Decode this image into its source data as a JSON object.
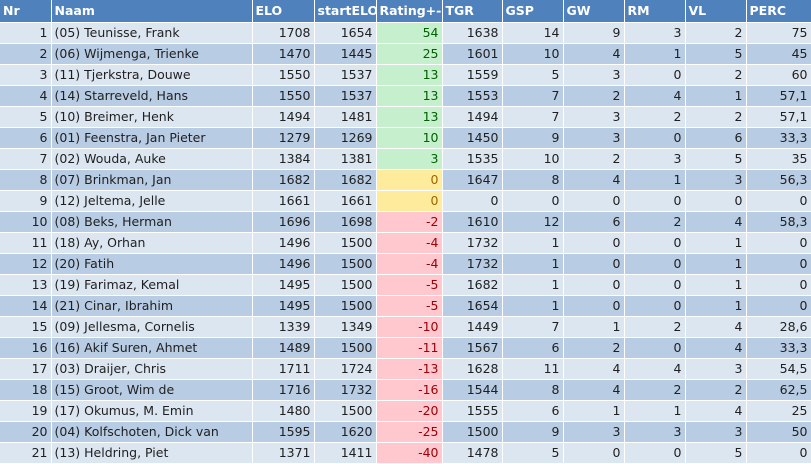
{
  "columns": [
    "Nr",
    "Naam",
    "ELO",
    "startELO",
    "Rating+-",
    "TGR",
    "GSP",
    "GW",
    "RM",
    "VL",
    "PERC"
  ],
  "rows": [
    {
      "nr": "1",
      "naam": "(05) Teunisse, Frank",
      "elo": "1708",
      "start": "1654",
      "rating": "54",
      "tgr": "1638",
      "gsp": "14",
      "gw": "9",
      "rm": "3",
      "vl": "2",
      "perc": "75"
    },
    {
      "nr": "2",
      "naam": "(06) Wijmenga, Trienke",
      "elo": "1470",
      "start": "1445",
      "rating": "25",
      "tgr": "1601",
      "gsp": "10",
      "gw": "4",
      "rm": "1",
      "vl": "5",
      "perc": "45"
    },
    {
      "nr": "3",
      "naam": "(11) Tjerkstra, Douwe",
      "elo": "1550",
      "start": "1537",
      "rating": "13",
      "tgr": "1559",
      "gsp": "5",
      "gw": "3",
      "rm": "0",
      "vl": "2",
      "perc": "60"
    },
    {
      "nr": "4",
      "naam": "(14) Starreveld, Hans",
      "elo": "1550",
      "start": "1537",
      "rating": "13",
      "tgr": "1553",
      "gsp": "7",
      "gw": "2",
      "rm": "4",
      "vl": "1",
      "perc": "57,1"
    },
    {
      "nr": "5",
      "naam": "(10) Breimer, Henk",
      "elo": "1494",
      "start": "1481",
      "rating": "13",
      "tgr": "1494",
      "gsp": "7",
      "gw": "3",
      "rm": "2",
      "vl": "2",
      "perc": "57,1"
    },
    {
      "nr": "6",
      "naam": "(01) Feenstra, Jan Pieter",
      "elo": "1279",
      "start": "1269",
      "rating": "10",
      "tgr": "1450",
      "gsp": "9",
      "gw": "3",
      "rm": "0",
      "vl": "6",
      "perc": "33,3"
    },
    {
      "nr": "7",
      "naam": "(02) Wouda, Auke",
      "elo": "1384",
      "start": "1381",
      "rating": "3",
      "tgr": "1535",
      "gsp": "10",
      "gw": "2",
      "rm": "3",
      "vl": "5",
      "perc": "35"
    },
    {
      "nr": "8",
      "naam": "(07) Brinkman, Jan",
      "elo": "1682",
      "start": "1682",
      "rating": "0",
      "tgr": "1647",
      "gsp": "8",
      "gw": "4",
      "rm": "1",
      "vl": "3",
      "perc": "56,3"
    },
    {
      "nr": "9",
      "naam": "(12) Jeltema, Jelle",
      "elo": "1661",
      "start": "1661",
      "rating": "0",
      "tgr": "0",
      "gsp": "0",
      "gw": "0",
      "rm": "0",
      "vl": "0",
      "perc": "0"
    },
    {
      "nr": "10",
      "naam": "(08) Beks, Herman",
      "elo": "1696",
      "start": "1698",
      "rating": "-2",
      "tgr": "1610",
      "gsp": "12",
      "gw": "6",
      "rm": "2",
      "vl": "4",
      "perc": "58,3"
    },
    {
      "nr": "11",
      "naam": "(18)  Ay, Orhan",
      "elo": "1496",
      "start": "1500",
      "rating": "-4",
      "tgr": "1732",
      "gsp": "1",
      "gw": "0",
      "rm": "0",
      "vl": "1",
      "perc": "0"
    },
    {
      "nr": "12",
      "naam": "(20) Fatih",
      "elo": "1496",
      "start": "1500",
      "rating": "-4",
      "tgr": "1732",
      "gsp": "1",
      "gw": "0",
      "rm": "0",
      "vl": "1",
      "perc": "0"
    },
    {
      "nr": "13",
      "naam": "(19) Farimaz, Kemal",
      "elo": "1495",
      "start": "1500",
      "rating": "-5",
      "tgr": "1682",
      "gsp": "1",
      "gw": "0",
      "rm": "0",
      "vl": "1",
      "perc": "0"
    },
    {
      "nr": "14",
      "naam": "(21) Cinar, Ibrahim",
      "elo": "1495",
      "start": "1500",
      "rating": "-5",
      "tgr": "1654",
      "gsp": "1",
      "gw": "0",
      "rm": "0",
      "vl": "1",
      "perc": "0"
    },
    {
      "nr": "15",
      "naam": "(09) Jellesma, Cornelis",
      "elo": "1339",
      "start": "1349",
      "rating": "-10",
      "tgr": "1449",
      "gsp": "7",
      "gw": "1",
      "rm": "2",
      "vl": "4",
      "perc": "28,6"
    },
    {
      "nr": "16",
      "naam": "(16) Akif Suren, Ahmet",
      "elo": "1489",
      "start": "1500",
      "rating": "-11",
      "tgr": "1567",
      "gsp": "6",
      "gw": "2",
      "rm": "0",
      "vl": "4",
      "perc": "33,3"
    },
    {
      "nr": "17",
      "naam": "(03) Draijer, Chris",
      "elo": "1711",
      "start": "1724",
      "rating": "-13",
      "tgr": "1628",
      "gsp": "11",
      "gw": "4",
      "rm": "4",
      "vl": "3",
      "perc": "54,5"
    },
    {
      "nr": "18",
      "naam": "(15) Groot, Wim de",
      "elo": "1716",
      "start": "1732",
      "rating": "-16",
      "tgr": "1544",
      "gsp": "8",
      "gw": "4",
      "rm": "2",
      "vl": "2",
      "perc": "62,5"
    },
    {
      "nr": "19",
      "naam": "(17) Okumus, M. Emin",
      "elo": "1480",
      "start": "1500",
      "rating": "-20",
      "tgr": "1555",
      "gsp": "6",
      "gw": "1",
      "rm": "1",
      "vl": "4",
      "perc": "25"
    },
    {
      "nr": "20",
      "naam": "(04) Kolfschoten, Dick van",
      "elo": "1595",
      "start": "1620",
      "rating": "-25",
      "tgr": "1500",
      "gsp": "9",
      "gw": "3",
      "rm": "3",
      "vl": "3",
      "perc": "50"
    },
    {
      "nr": "21",
      "naam": "(13) Heldring, Piet",
      "elo": "1371",
      "start": "1411",
      "rating": "-40",
      "tgr": "1478",
      "gsp": "5",
      "gw": "0",
      "rm": "0",
      "vl": "5",
      "perc": "0"
    }
  ],
  "colors": {
    "header": "#4f81bd",
    "row_light": "#dce6f1",
    "row_dark": "#b8cce4",
    "positive": "#c6efce",
    "zero": "#ffeb9c",
    "negative": "#ffc7ce"
  }
}
